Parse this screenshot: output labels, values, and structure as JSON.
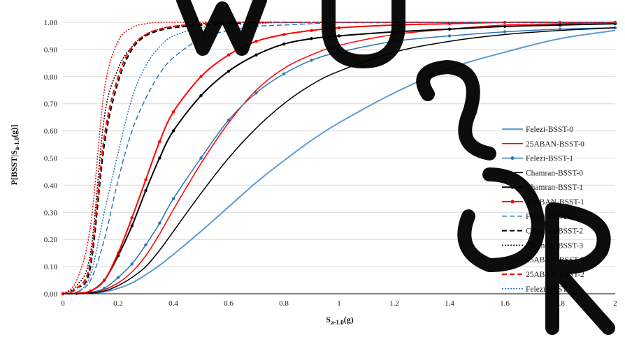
{
  "chart_data": {
    "type": "line",
    "xlabel_main": "S",
    "xlabel_sub": "a-1.0",
    "xlabel_tail": "(g)",
    "ylabel_main": "P[BSST|S",
    "ylabel_sub": "a-1.0",
    "ylabel_tail": "(g)]",
    "xlim": [
      0,
      2
    ],
    "ylim": [
      0,
      1
    ],
    "x_ticks": [
      "0",
      "0.2",
      "0.4",
      "0.6",
      "0.8",
      "1",
      "1.2",
      "1.4",
      "1.6",
      "1.8",
      "2"
    ],
    "y_ticks": [
      "0.00",
      "0.10",
      "0.20",
      "0.30",
      "0.40",
      "0.50",
      "0.60",
      "0.70",
      "0.80",
      "0.90",
      "1.00"
    ],
    "grid": "horizontal",
    "legend_position": "right",
    "x": [
      0,
      0.05,
      0.1,
      0.15,
      0.2,
      0.25,
      0.3,
      0.35,
      0.4,
      0.5,
      0.6,
      0.7,
      0.8,
      0.9,
      1.0,
      1.2,
      1.4,
      1.6,
      1.8,
      2.0
    ],
    "series": [
      {
        "name": "Felezi-BSST-0",
        "color": "#5b9bd5",
        "dash": "solid",
        "width": 2,
        "marker": false,
        "values": [
          0,
          0,
          0.002,
          0.007,
          0.02,
          0.04,
          0.07,
          0.105,
          0.145,
          0.23,
          0.32,
          0.41,
          0.49,
          0.565,
          0.63,
          0.74,
          0.83,
          0.89,
          0.94,
          0.97
        ]
      },
      {
        "name": "25ABAN-BSST-0",
        "color": "#ff0000",
        "dash": "solid",
        "width": 1.5,
        "marker": false,
        "values": [
          0,
          0.001,
          0.004,
          0.015,
          0.04,
          0.08,
          0.14,
          0.22,
          0.31,
          0.48,
          0.63,
          0.75,
          0.83,
          0.88,
          0.915,
          0.955,
          0.975,
          0.99,
          0.995,
          1.0
        ]
      },
      {
        "name": "Felezi-BSST-1",
        "color": "#2e75b6",
        "dash": "solid",
        "width": 1.5,
        "marker": true,
        "values": [
          0,
          0.001,
          0.005,
          0.02,
          0.06,
          0.11,
          0.18,
          0.26,
          0.35,
          0.5,
          0.64,
          0.74,
          0.81,
          0.86,
          0.89,
          0.93,
          0.95,
          0.965,
          0.975,
          0.98
        ]
      },
      {
        "name": "Chamran-BSST-0",
        "color": "#000000",
        "dash": "solid",
        "width": 1.5,
        "marker": false,
        "values": [
          0,
          0.001,
          0.003,
          0.01,
          0.03,
          0.06,
          0.1,
          0.16,
          0.23,
          0.37,
          0.5,
          0.61,
          0.7,
          0.77,
          0.82,
          0.89,
          0.93,
          0.955,
          0.97,
          0.98
        ]
      },
      {
        "name": "Chamran-BSST-1",
        "color": "#000000",
        "dash": "solid",
        "width": 2,
        "marker": true,
        "values": [
          0,
          0.002,
          0.01,
          0.05,
          0.14,
          0.25,
          0.38,
          0.5,
          0.6,
          0.73,
          0.82,
          0.88,
          0.92,
          0.94,
          0.95,
          0.965,
          0.975,
          0.985,
          0.99,
          0.995
        ]
      },
      {
        "name": "25ABAN-BSST-1",
        "color": "#ff0000",
        "dash": "solid",
        "width": 2,
        "marker": true,
        "values": [
          0,
          0.002,
          0.01,
          0.05,
          0.15,
          0.28,
          0.42,
          0.56,
          0.67,
          0.8,
          0.88,
          0.93,
          0.955,
          0.97,
          0.98,
          0.99,
          0.995,
          1.0,
          1.0,
          1.0
        ]
      },
      {
        "name": "Felezi-BSST-2",
        "color": "#2e75b6",
        "dash": "dash",
        "width": 1.5,
        "marker": false,
        "values": [
          0,
          0.005,
          0.05,
          0.2,
          0.42,
          0.6,
          0.72,
          0.81,
          0.87,
          0.94,
          0.97,
          0.985,
          0.99,
          0.995,
          1.0,
          1.0,
          1.0,
          1.0,
          1.0,
          1.0
        ]
      },
      {
        "name": "Chamran-BSST-2",
        "color": "#000000",
        "dash": "dash",
        "width": 2,
        "marker": false,
        "values": [
          0,
          0.02,
          0.1,
          0.55,
          0.78,
          0.9,
          0.95,
          0.97,
          0.98,
          0.99,
          0.995,
          1.0,
          1.0,
          1.0,
          1.0,
          1.0,
          1.0,
          1.0,
          1.0,
          1.0
        ]
      },
      {
        "name": "Chamran-BSST-3",
        "color": "#000000",
        "dash": "dot",
        "width": 1.5,
        "marker": false,
        "values": [
          0,
          0.03,
          0.15,
          0.65,
          0.83,
          0.91,
          0.955,
          0.975,
          0.985,
          0.995,
          1.0,
          1.0,
          1.0,
          1.0,
          1.0,
          1.0,
          1.0,
          1.0,
          1.0,
          1.0
        ]
      },
      {
        "name": "25ABAN-BSST-3",
        "color": "#ff0000",
        "dash": "dot",
        "width": 1.5,
        "marker": false,
        "values": [
          0,
          0.05,
          0.25,
          0.75,
          0.93,
          0.98,
          0.995,
          1.0,
          1.0,
          1.0,
          1.0,
          1.0,
          1.0,
          1.0,
          1.0,
          1.0,
          1.0,
          1.0,
          1.0,
          1.0
        ]
      },
      {
        "name": "25ABAN-BSST-2",
        "color": "#ff0000",
        "dash": "dash",
        "width": 2,
        "marker": false,
        "values": [
          0,
          0.02,
          0.12,
          0.58,
          0.8,
          0.91,
          0.955,
          0.975,
          0.985,
          0.995,
          1.0,
          1.0,
          1.0,
          1.0,
          1.0,
          1.0,
          1.0,
          1.0,
          1.0,
          1.0
        ]
      },
      {
        "name": "Felezi-BSST-3",
        "color": "#2e75b6",
        "dash": "dot",
        "width": 1.5,
        "marker": false,
        "values": [
          0,
          0.005,
          0.07,
          0.3,
          0.52,
          0.72,
          0.84,
          0.91,
          0.95,
          0.98,
          0.99,
          0.995,
          1.0,
          1.0,
          1.0,
          1.0,
          1.0,
          1.0,
          1.0,
          1.0
        ]
      }
    ]
  }
}
